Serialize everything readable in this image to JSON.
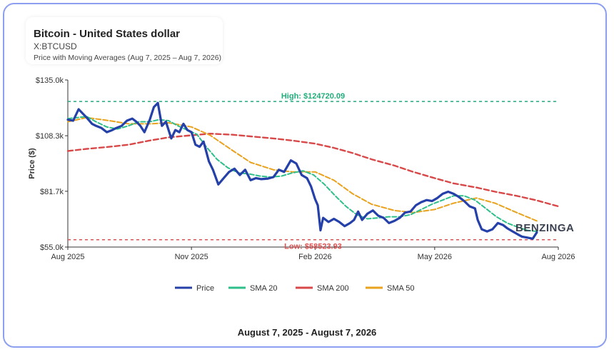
{
  "header": {
    "title": "Bitcoin - United States dollar",
    "symbol": "X:BTCUSD",
    "subtitle": "Price with Moving Averages (Aug 7, 2025 – Aug 7, 2026)"
  },
  "footer": {
    "date_range": "August 7, 2025 - August 7, 2026"
  },
  "watermark": "BENZINGA",
  "chart_data": {
    "type": "line",
    "title": "Bitcoin - United States dollar",
    "xlabel": "",
    "ylabel": "Price ($)",
    "x_start": "2025-08-07",
    "x_end": "2026-08-07",
    "xlim": [
      "2025-08-01",
      "2026-08-01"
    ],
    "x_ticks": [
      {
        "date": "2025-08-01",
        "label": "Aug 2025"
      },
      {
        "date": "2025-11-01",
        "label": "Nov 2025"
      },
      {
        "date": "2026-02-01",
        "label": "Feb 2026"
      },
      {
        "date": "2026-05-01",
        "label": "May 2026"
      },
      {
        "date": "2026-08-01",
        "label": "Aug 2026"
      }
    ],
    "ylim": [
      55000,
      135000
    ],
    "y_ticks": [
      {
        "value": 55000,
        "label": "$55.0k"
      },
      {
        "value": 81700,
        "label": "$81.7k"
      },
      {
        "value": 108300,
        "label": "$108.3k"
      },
      {
        "value": 135000,
        "label": "$135.0k"
      }
    ],
    "annotations": [
      {
        "label": "High: $124720.09",
        "value": 124720.09,
        "color": "#1fae7a"
      },
      {
        "label": "Low: $58523.93",
        "value": 58523.93,
        "color": "#e05252"
      }
    ],
    "legend": {
      "placement": "bottom"
    },
    "grid": false,
    "series": [
      {
        "name": "Price",
        "color": "#2540a8",
        "points": [
          [
            "2025-08-01",
            116000
          ],
          [
            "2025-08-05",
            115500
          ],
          [
            "2025-08-09",
            121000
          ],
          [
            "2025-08-12",
            119000
          ],
          [
            "2025-08-15",
            117000
          ],
          [
            "2025-08-19",
            114000
          ],
          [
            "2025-08-22",
            113000
          ],
          [
            "2025-08-26",
            112000
          ],
          [
            "2025-08-30",
            110000
          ],
          [
            "2025-09-03",
            111000
          ],
          [
            "2025-09-06",
            112000
          ],
          [
            "2025-09-10",
            113000
          ],
          [
            "2025-09-14",
            115500
          ],
          [
            "2025-09-18",
            116500
          ],
          [
            "2025-09-21",
            115000
          ],
          [
            "2025-09-24",
            113000
          ],
          [
            "2025-09-27",
            110000
          ],
          [
            "2025-10-01",
            116000
          ],
          [
            "2025-10-04",
            122000
          ],
          [
            "2025-10-07",
            124000
          ],
          [
            "2025-10-10",
            113000
          ],
          [
            "2025-10-13",
            115000
          ],
          [
            "2025-10-17",
            107000
          ],
          [
            "2025-10-20",
            111000
          ],
          [
            "2025-10-23",
            110000
          ],
          [
            "2025-10-26",
            114000
          ],
          [
            "2025-10-29",
            111000
          ],
          [
            "2025-11-01",
            110000
          ],
          [
            "2025-11-04",
            104000
          ],
          [
            "2025-11-07",
            103000
          ],
          [
            "2025-11-10",
            105500
          ],
          [
            "2025-11-14",
            96000
          ],
          [
            "2025-11-17",
            92000
          ],
          [
            "2025-11-21",
            85000
          ],
          [
            "2025-11-25",
            88000
          ],
          [
            "2025-11-29",
            91000
          ],
          [
            "2025-12-03",
            92500
          ],
          [
            "2025-12-07",
            89500
          ],
          [
            "2025-12-11",
            92000
          ],
          [
            "2025-12-15",
            87000
          ],
          [
            "2025-12-19",
            88000
          ],
          [
            "2025-12-23",
            87500
          ],
          [
            "2025-12-28",
            87800
          ],
          [
            "2026-01-01",
            88500
          ],
          [
            "2026-01-05",
            92000
          ],
          [
            "2026-01-09",
            91000
          ],
          [
            "2026-01-14",
            96500
          ],
          [
            "2026-01-18",
            95000
          ],
          [
            "2026-01-22",
            89500
          ],
          [
            "2026-01-26",
            88000
          ],
          [
            "2026-01-29",
            84000
          ],
          [
            "2026-02-01",
            78000
          ],
          [
            "2026-02-03",
            75000
          ],
          [
            "2026-02-05",
            63000
          ],
          [
            "2026-02-07",
            69000
          ],
          [
            "2026-02-11",
            67000
          ],
          [
            "2026-02-15",
            68500
          ],
          [
            "2026-02-19",
            67000
          ],
          [
            "2026-02-23",
            65000
          ],
          [
            "2026-02-27",
            66500
          ],
          [
            "2026-03-02",
            68000
          ],
          [
            "2026-03-05",
            72000
          ],
          [
            "2026-03-08",
            68000
          ],
          [
            "2026-03-12",
            71000
          ],
          [
            "2026-03-16",
            72500
          ],
          [
            "2026-03-20",
            70000
          ],
          [
            "2026-03-24",
            69000
          ],
          [
            "2026-03-28",
            66500
          ],
          [
            "2026-04-01",
            67500
          ],
          [
            "2026-04-05",
            69000
          ],
          [
            "2026-04-09",
            71500
          ],
          [
            "2026-04-13",
            72000
          ],
          [
            "2026-04-17",
            75000
          ],
          [
            "2026-04-21",
            76500
          ],
          [
            "2026-04-25",
            77500
          ],
          [
            "2026-04-29",
            77000
          ],
          [
            "2026-05-03",
            78500
          ],
          [
            "2026-05-07",
            80500
          ],
          [
            "2026-05-11",
            81500
          ],
          [
            "2026-05-15",
            80500
          ],
          [
            "2026-05-19",
            79000
          ],
          [
            "2026-05-23",
            77000
          ],
          [
            "2026-05-27",
            74500
          ],
          [
            "2026-05-31",
            73500
          ],
          [
            "2026-06-02",
            68000
          ],
          [
            "2026-06-05",
            63500
          ],
          [
            "2026-06-09",
            62500
          ],
          [
            "2026-06-13",
            63500
          ],
          [
            "2026-06-17",
            66500
          ],
          [
            "2026-06-21",
            65500
          ],
          [
            "2026-06-24",
            64000
          ],
          [
            "2026-06-28",
            62500
          ],
          [
            "2026-07-02",
            61000
          ],
          [
            "2026-07-05",
            60000
          ],
          [
            "2026-07-09",
            59500
          ],
          [
            "2026-07-13",
            59000
          ],
          [
            "2026-07-16",
            62000
          ]
        ]
      },
      {
        "name": "SMA 20",
        "color": "#2fbf8a",
        "points": [
          [
            "2025-08-01",
            116500
          ],
          [
            "2025-08-08",
            117000
          ],
          [
            "2025-08-15",
            117500
          ],
          [
            "2025-08-22",
            115000
          ],
          [
            "2025-08-30",
            112500
          ],
          [
            "2025-09-07",
            111500
          ],
          [
            "2025-09-15",
            113000
          ],
          [
            "2025-09-23",
            115000
          ],
          [
            "2025-10-01",
            115000
          ],
          [
            "2025-10-08",
            116000
          ],
          [
            "2025-10-15",
            115500
          ],
          [
            "2025-10-22",
            113000
          ],
          [
            "2025-10-29",
            111000
          ],
          [
            "2025-11-05",
            109000
          ],
          [
            "2025-11-12",
            103000
          ],
          [
            "2025-11-20",
            97000
          ],
          [
            "2025-11-28",
            93000
          ],
          [
            "2025-12-06",
            90500
          ],
          [
            "2025-12-14",
            90000
          ],
          [
            "2025-12-22",
            89000
          ],
          [
            "2025-12-30",
            88500
          ],
          [
            "2026-01-07",
            89000
          ],
          [
            "2026-01-15",
            90500
          ],
          [
            "2026-01-23",
            91500
          ],
          [
            "2026-01-31",
            89500
          ],
          [
            "2026-02-08",
            85000
          ],
          [
            "2026-02-16",
            79500
          ],
          [
            "2026-02-24",
            74500
          ],
          [
            "2026-03-04",
            70500
          ],
          [
            "2026-03-12",
            68500
          ],
          [
            "2026-03-20",
            69000
          ],
          [
            "2026-03-28",
            69500
          ],
          [
            "2026-04-05",
            69500
          ],
          [
            "2026-04-13",
            70500
          ],
          [
            "2026-04-21",
            73000
          ],
          [
            "2026-04-29",
            75500
          ],
          [
            "2026-05-07",
            77500
          ],
          [
            "2026-05-15",
            79500
          ],
          [
            "2026-05-23",
            79500
          ],
          [
            "2026-05-31",
            77500
          ],
          [
            "2026-06-08",
            73500
          ],
          [
            "2026-06-16",
            69500
          ],
          [
            "2026-06-24",
            66500
          ],
          [
            "2026-07-02",
            64500
          ],
          [
            "2026-07-09",
            63000
          ],
          [
            "2026-07-16",
            62500
          ]
        ]
      },
      {
        "name": "SMA 200",
        "color": "#d94848",
        "points": [
          [
            "2025-08-01",
            101000
          ],
          [
            "2025-08-15",
            102000
          ],
          [
            "2025-09-01",
            103000
          ],
          [
            "2025-09-15",
            104000
          ],
          [
            "2025-10-01",
            106000
          ],
          [
            "2025-10-15",
            107500
          ],
          [
            "2025-11-01",
            108500
          ],
          [
            "2025-11-15",
            109300
          ],
          [
            "2025-12-01",
            108800
          ],
          [
            "2025-12-15",
            108000
          ],
          [
            "2026-01-01",
            107000
          ],
          [
            "2026-01-15",
            106000
          ],
          [
            "2026-02-01",
            104500
          ],
          [
            "2026-02-15",
            102500
          ],
          [
            "2026-03-01",
            100000
          ],
          [
            "2026-03-15",
            97000
          ],
          [
            "2026-04-01",
            94000
          ],
          [
            "2026-04-15",
            91000
          ],
          [
            "2026-05-01",
            88000
          ],
          [
            "2026-05-15",
            85500
          ],
          [
            "2026-06-01",
            83500
          ],
          [
            "2026-06-15",
            81500
          ],
          [
            "2026-07-01",
            79500
          ],
          [
            "2026-07-15",
            77500
          ],
          [
            "2026-08-01",
            74500
          ]
        ]
      },
      {
        "name": "SMA 50",
        "color": "#e9a21d",
        "points": [
          [
            "2025-08-01",
            115000
          ],
          [
            "2025-08-15",
            117000
          ],
          [
            "2025-09-01",
            115500
          ],
          [
            "2025-09-15",
            114000
          ],
          [
            "2025-10-01",
            114000
          ],
          [
            "2025-10-15",
            114500
          ],
          [
            "2025-11-01",
            112500
          ],
          [
            "2025-11-15",
            108500
          ],
          [
            "2025-12-01",
            101500
          ],
          [
            "2025-12-15",
            95500
          ],
          [
            "2026-01-01",
            92000
          ],
          [
            "2026-01-15",
            91000
          ],
          [
            "2026-02-01",
            91000
          ],
          [
            "2026-02-15",
            87000
          ],
          [
            "2026-03-01",
            80500
          ],
          [
            "2026-03-15",
            75500
          ],
          [
            "2026-04-01",
            72500
          ],
          [
            "2026-04-15",
            71500
          ],
          [
            "2026-05-01",
            73000
          ],
          [
            "2026-05-15",
            76000
          ],
          [
            "2026-06-01",
            78500
          ],
          [
            "2026-06-15",
            76000
          ],
          [
            "2026-07-01",
            71500
          ],
          [
            "2026-07-16",
            67500
          ]
        ]
      }
    ]
  }
}
